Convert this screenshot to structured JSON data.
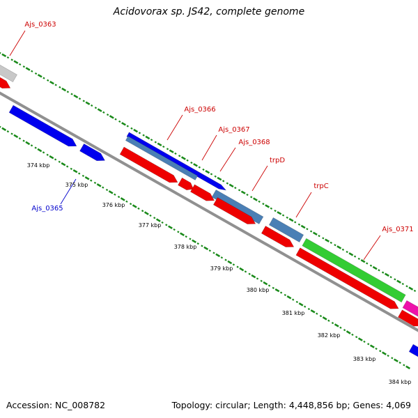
{
  "title": "Acidovorax sp. JS42, complete genome",
  "footer": {
    "accession": "Accession: NC_008782",
    "summary": "Topology: circular; Length: 4,448,856 bp; Genes: 4,069"
  },
  "colors": {
    "gc_ticks": "#1a8a1a",
    "backbone": "#909090",
    "label_red": "#cc0000",
    "label_blue": "#0000cc",
    "forward_blue": "#0000ee",
    "steel_blue": "#4a7fb5",
    "rna_green": "#33cc33",
    "reverse_red": "#ee0000",
    "pink": "#ee11aa",
    "grey_gene": "#c8c8c8"
  },
  "scale_ticks": [
    "374 kbp",
    "375 kbp",
    "376 kbp",
    "377 kbp",
    "378 kbp",
    "379 kbp",
    "380 kbp",
    "381 kbp",
    "382 kbp",
    "383 kbp",
    "384 kbp"
  ],
  "gene_labels": [
    {
      "text": "Ajs_0363",
      "color": "red"
    },
    {
      "text": "Ajs_0366",
      "color": "red"
    },
    {
      "text": "Ajs_0367",
      "color": "red"
    },
    {
      "text": "Ajs_0368",
      "color": "red"
    },
    {
      "text": "trpD",
      "color": "red"
    },
    {
      "text": "trpC",
      "color": "red"
    },
    {
      "text": "Ajs_0371",
      "color": "red"
    },
    {
      "text": "Ajs_0365",
      "color": "blue"
    }
  ]
}
